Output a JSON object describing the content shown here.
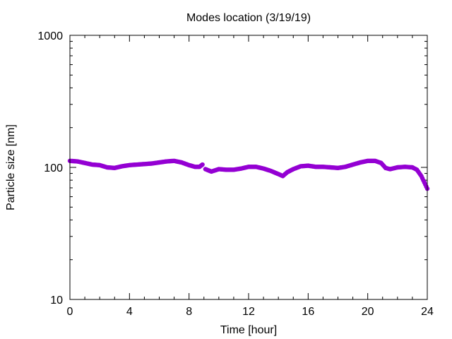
{
  "chart_data": {
    "type": "scatter",
    "title": "Modes location (3/19/19)",
    "xlabel": "Time [hour]",
    "ylabel": "Particle size [nm]",
    "xlim": [
      0,
      24
    ],
    "ylim": [
      10,
      1000
    ],
    "y_scale": "log",
    "grid": false,
    "legend": "none",
    "x_ticks": [
      0,
      4,
      8,
      12,
      16,
      20,
      24
    ],
    "x_tick_labels": [
      "0",
      "4",
      "8",
      "12",
      "16",
      "20",
      "24"
    ],
    "y_ticks": [
      10,
      100,
      1000
    ],
    "y_tick_labels": [
      "10",
      "100",
      "1000"
    ],
    "series_color": "#9400d3",
    "series": [
      {
        "segments": [
          {
            "x": [
              0.0,
              0.5,
              1.0,
              1.5,
              2.0,
              2.5,
              3.0,
              3.5,
              4.0,
              4.5,
              5.0,
              5.5,
              6.0,
              6.5,
              7.0,
              7.5,
              8.0,
              8.4,
              8.7,
              8.9
            ],
            "y": [
              112,
              111,
              108,
              105,
              104,
              100,
              99,
              102,
              104,
              105,
              106,
              107,
              109,
              111,
              112,
              109,
              104,
              101,
              101,
              105
            ]
          },
          {
            "x": [
              9.1,
              9.5,
              10.0,
              10.5,
              11.0,
              11.5,
              12.0,
              12.5,
              13.0,
              13.5,
              14.0,
              14.3,
              14.6,
              15.0,
              15.5,
              16.0,
              16.5,
              17.0,
              17.5,
              18.0,
              18.5,
              19.0,
              19.5,
              20.0,
              20.5,
              20.9,
              21.2,
              21.5,
              22.0,
              22.5,
              23.0,
              23.3,
              23.6,
              24.0
            ],
            "y": [
              97,
              93,
              97,
              96,
              96,
              98,
              101,
              101,
              98,
              94,
              89,
              86,
              92,
              97,
              102,
              103,
              101,
              101,
              100,
              99,
              101,
              105,
              109,
              112,
              112,
              108,
              99,
              97,
              100,
              101,
              100,
              96,
              86,
              69
            ]
          }
        ]
      }
    ]
  }
}
